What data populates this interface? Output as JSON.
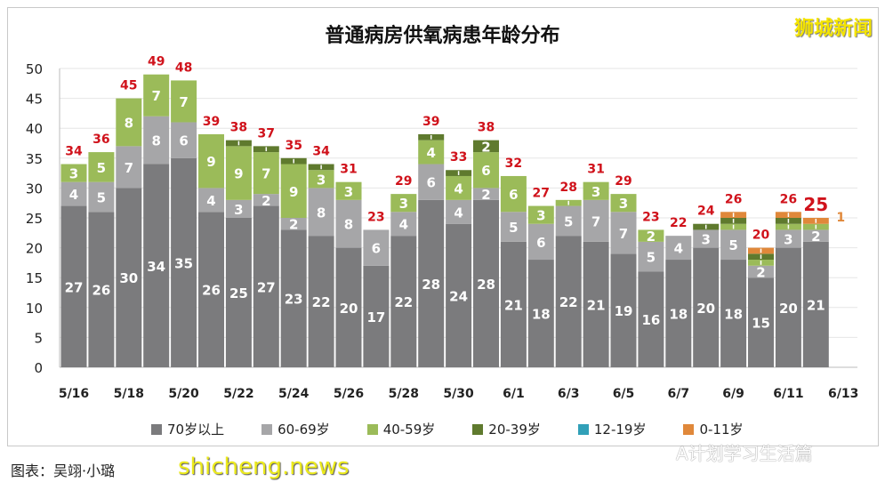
{
  "brand": "狮城新闻",
  "credit": "图表：吴翊·小璐",
  "watermark_site": "shicheng.news",
  "watermark_account": "A计划学习生活篇",
  "chart_data": {
    "type": "bar",
    "stacked": true,
    "title": "普通病房供氧病患年龄分布",
    "categories": [
      "5/16",
      "5/17",
      "5/18",
      "5/19",
      "5/20",
      "5/21",
      "5/22",
      "5/23",
      "5/24",
      "5/25",
      "5/26",
      "5/27",
      "5/28",
      "5/29",
      "5/30",
      "5/31",
      "6/1",
      "6/2",
      "6/3",
      "6/4",
      "6/5",
      "6/6",
      "6/7",
      "6/8",
      "6/9",
      "6/10",
      "6/11",
      "6/12"
    ],
    "x_tick_labels": [
      "5/16",
      "5/18",
      "5/20",
      "5/22",
      "5/24",
      "5/26",
      "5/28",
      "5/30",
      "6/1",
      "6/3",
      "6/5",
      "6/7",
      "6/9",
      "6/11",
      "6/13"
    ],
    "ylim": [
      0,
      50
    ],
    "y_ticks": [
      0,
      5,
      10,
      15,
      20,
      25,
      30,
      35,
      40,
      45,
      50
    ],
    "grid": true,
    "legend_position": "bottom",
    "series": [
      {
        "name": "70岁以上",
        "color": "#7b7b7d",
        "values": [
          27,
          26,
          30,
          34,
          35,
          26,
          25,
          27,
          23,
          22,
          20,
          17,
          22,
          28,
          24,
          28,
          21,
          18,
          22,
          21,
          19,
          16,
          18,
          20,
          18,
          15,
          20,
          21
        ]
      },
      {
        "name": "60-69岁",
        "color": "#a6a6a8",
        "values": [
          4,
          5,
          7,
          8,
          6,
          4,
          3,
          2,
          2,
          8,
          8,
          6,
          4,
          6,
          4,
          2,
          5,
          6,
          5,
          7,
          7,
          5,
          4,
          3,
          5,
          2,
          3,
          2
        ]
      },
      {
        "name": "40-59岁",
        "color": "#9bbb59",
        "values": [
          3,
          5,
          8,
          7,
          7,
          9,
          9,
          7,
          9,
          3,
          3,
          0,
          3,
          4,
          4,
          6,
          6,
          3,
          1,
          3,
          3,
          2,
          0,
          0,
          1,
          1,
          1,
          1
        ]
      },
      {
        "name": "20-39岁",
        "color": "#5f7a2e",
        "values": [
          0,
          0,
          0,
          0,
          0,
          0,
          1,
          1,
          1,
          1,
          0,
          0,
          0,
          1,
          1,
          2,
          0,
          0,
          0,
          0,
          0,
          0,
          0,
          1,
          1,
          1,
          1,
          0
        ]
      },
      {
        "name": "12-19岁",
        "color": "#31a0b8",
        "values": [
          0,
          0,
          0,
          0,
          0,
          0,
          0,
          0,
          0,
          0,
          0,
          0,
          0,
          0,
          0,
          0,
          0,
          0,
          0,
          0,
          0,
          0,
          0,
          0,
          0,
          0,
          0,
          0
        ]
      },
      {
        "name": "0-11岁",
        "color": "#e0883a",
        "values": [
          0,
          0,
          0,
          0,
          0,
          0,
          0,
          0,
          0,
          0,
          0,
          0,
          0,
          0,
          0,
          0,
          0,
          0,
          0,
          0,
          0,
          0,
          0,
          0,
          1,
          1,
          1,
          1
        ]
      }
    ],
    "totals": [
      34,
      36,
      45,
      49,
      48,
      39,
      38,
      37,
      35,
      34,
      31,
      23,
      29,
      39,
      33,
      38,
      32,
      27,
      28,
      31,
      29,
      23,
      22,
      24,
      26,
      20,
      26,
      25
    ],
    "total_label_color": "#d0121b"
  }
}
